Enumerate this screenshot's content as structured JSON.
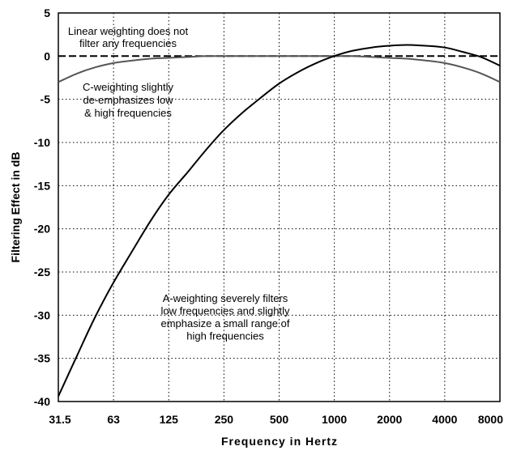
{
  "chart_data": {
    "type": "line",
    "title": "",
    "xlabel": "Frequency in Hertz",
    "ylabel": "Filtering Effect in dB",
    "x_scale": "log2",
    "categories": [
      "31.5",
      "63",
      "125",
      "250",
      "500",
      "1000",
      "2000",
      "4000",
      "8000"
    ],
    "yticks": [
      "5",
      "0",
      "-5",
      "-10",
      "-15",
      "-20",
      "-25",
      "-30",
      "-35",
      "-40"
    ],
    "ylim": [
      -40,
      5
    ],
    "grid": true,
    "series": [
      {
        "name": "Linear weighting",
        "style": "dashed",
        "color": "#000000",
        "x": [
          31.5,
          8000
        ],
        "values": [
          0,
          0
        ]
      },
      {
        "name": "C-weighting",
        "style": "solid",
        "color": "#555555",
        "x": [
          31.5,
          40,
          50,
          63,
          80,
          100,
          125,
          160,
          200,
          250,
          315,
          400,
          500,
          630,
          800,
          1000,
          1250,
          1600,
          2000,
          2500,
          3150,
          4000,
          5000,
          6300,
          8000
        ],
        "values": [
          -3.0,
          -2.0,
          -1.3,
          -0.8,
          -0.5,
          -0.3,
          -0.2,
          -0.1,
          0,
          0,
          0,
          0,
          0,
          0,
          0,
          0,
          0,
          -0.1,
          -0.2,
          -0.3,
          -0.5,
          -0.8,
          -1.3,
          -2.0,
          -3.0
        ]
      },
      {
        "name": "A-weighting",
        "style": "solid",
        "color": "#000000",
        "x": [
          31.5,
          40,
          50,
          63,
          80,
          100,
          125,
          160,
          200,
          250,
          315,
          400,
          500,
          630,
          800,
          1000,
          1250,
          1600,
          2000,
          2500,
          3150,
          4000,
          5000,
          6300,
          8000
        ],
        "values": [
          -39.4,
          -34.6,
          -30.2,
          -26.2,
          -22.5,
          -19.1,
          -16.1,
          -13.4,
          -10.9,
          -8.6,
          -6.6,
          -4.8,
          -3.2,
          -1.9,
          -0.8,
          0,
          0.6,
          1.0,
          1.2,
          1.3,
          1.2,
          1.0,
          0.5,
          -0.1,
          -1.1
        ]
      }
    ],
    "annotations": [
      {
        "id": "linear",
        "lines": [
          "Linear weighting does not",
          "filter any frequencies"
        ]
      },
      {
        "id": "c",
        "lines": [
          "C-weighting slightly",
          "de-emphasizes low",
          "& high frequencies"
        ]
      },
      {
        "id": "a",
        "lines": [
          "A-weighting severely filters",
          "low frequencies and slightly",
          "emphasize a small range of",
          "high frequencies"
        ]
      }
    ]
  }
}
